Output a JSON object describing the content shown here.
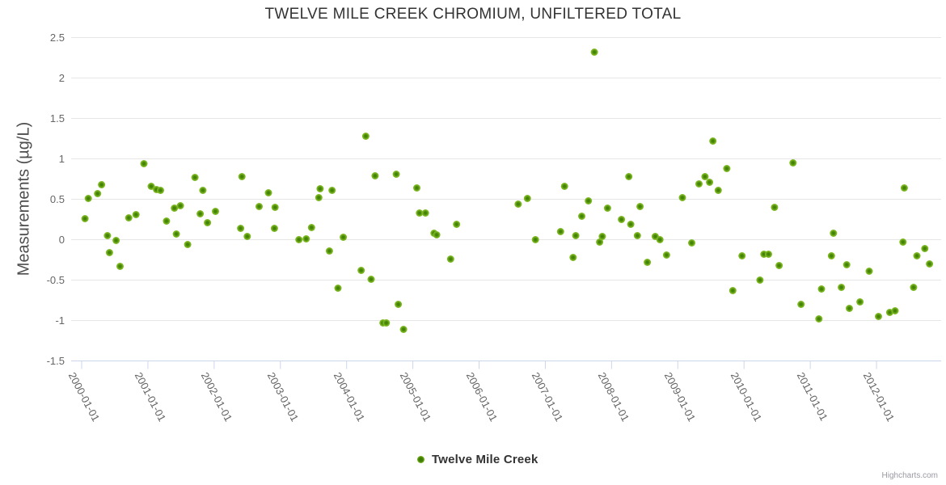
{
  "credit": "Highcharts.com",
  "chart_data": {
    "type": "scatter",
    "title": "TWELVE MILE CREEK CHROMIUM, UNFILTERED TOTAL",
    "ylabel": "Measurements (µg/L)",
    "xlabel": "",
    "ylim": [
      -1.5,
      2.5
    ],
    "yticks": [
      2.5,
      2,
      1.5,
      1,
      0.5,
      0,
      -0.5,
      -1,
      -1.5
    ],
    "xticks": [
      "2000-01-01",
      "2001-01-01",
      "2002-01-01",
      "2003-01-01",
      "2004-01-01",
      "2005-01-01",
      "2006-01-01",
      "2007-01-01",
      "2008-01-01",
      "2009-01-01",
      "2010-01-01",
      "2011-01-01",
      "2012-01-01"
    ],
    "grid": "horizontal-only",
    "legend_position": "bottom-center",
    "colors": {
      "grid": "#e6e6e6",
      "axis": "#ccd6eb",
      "marker_outer": "#77b41f",
      "marker_inner": "#3e7c04"
    },
    "series": [
      {
        "name": "Twelve Mile Creek",
        "points_year_value": [
          [
            2000.05,
            0.26
          ],
          [
            2000.1,
            0.51
          ],
          [
            2000.24,
            0.57
          ],
          [
            2000.3,
            0.68
          ],
          [
            2000.39,
            0.05
          ],
          [
            2000.42,
            -0.16
          ],
          [
            2000.52,
            -0.01
          ],
          [
            2000.58,
            -0.33
          ],
          [
            2000.71,
            0.27
          ],
          [
            2000.82,
            0.31
          ],
          [
            2000.94,
            0.94
          ],
          [
            2001.05,
            0.66
          ],
          [
            2001.13,
            0.62
          ],
          [
            2001.19,
            0.61
          ],
          [
            2001.28,
            0.23
          ],
          [
            2001.4,
            0.39
          ],
          [
            2001.43,
            0.07
          ],
          [
            2001.49,
            0.42
          ],
          [
            2001.6,
            -0.06
          ],
          [
            2001.71,
            0.77
          ],
          [
            2001.79,
            0.32
          ],
          [
            2001.83,
            0.61
          ],
          [
            2001.9,
            0.21
          ],
          [
            2002.02,
            0.35
          ],
          [
            2002.4,
            0.14
          ],
          [
            2002.42,
            0.78
          ],
          [
            2002.5,
            0.04
          ],
          [
            2002.68,
            0.41
          ],
          [
            2002.82,
            0.58
          ],
          [
            2002.91,
            0.14
          ],
          [
            2002.92,
            0.4
          ],
          [
            2003.28,
            0.0
          ],
          [
            2003.39,
            0.01
          ],
          [
            2003.47,
            0.15
          ],
          [
            2003.58,
            0.52
          ],
          [
            2003.6,
            0.63
          ],
          [
            2003.74,
            -0.14
          ],
          [
            2003.78,
            0.61
          ],
          [
            2003.87,
            -0.6
          ],
          [
            2003.95,
            0.03
          ],
          [
            2004.22,
            -0.38
          ],
          [
            2004.29,
            1.28
          ],
          [
            2004.37,
            -0.49
          ],
          [
            2004.43,
            0.79
          ],
          [
            2004.55,
            -1.03
          ],
          [
            2004.6,
            -1.03
          ],
          [
            2004.75,
            0.81
          ],
          [
            2004.78,
            -0.8
          ],
          [
            2004.86,
            -1.11
          ],
          [
            2005.06,
            0.64
          ],
          [
            2005.1,
            0.33
          ],
          [
            2005.19,
            0.33
          ],
          [
            2005.32,
            0.08
          ],
          [
            2005.36,
            0.06
          ],
          [
            2005.57,
            -0.24
          ],
          [
            2005.66,
            0.19
          ],
          [
            2006.59,
            0.44
          ],
          [
            2006.73,
            0.51
          ],
          [
            2006.85,
            0.0
          ],
          [
            2007.23,
            0.1
          ],
          [
            2007.29,
            0.66
          ],
          [
            2007.42,
            -0.22
          ],
          [
            2007.46,
            0.05
          ],
          [
            2007.55,
            0.29
          ],
          [
            2007.65,
            0.48
          ],
          [
            2007.74,
            2.32
          ],
          [
            2007.82,
            -0.03
          ],
          [
            2007.86,
            0.04
          ],
          [
            2007.94,
            0.39
          ],
          [
            2008.15,
            0.25
          ],
          [
            2008.26,
            0.78
          ],
          [
            2008.29,
            0.19
          ],
          [
            2008.39,
            0.05
          ],
          [
            2008.43,
            0.41
          ],
          [
            2008.54,
            -0.28
          ],
          [
            2008.66,
            0.04
          ],
          [
            2008.73,
            0.0
          ],
          [
            2008.83,
            -0.19
          ],
          [
            2009.07,
            0.52
          ],
          [
            2009.21,
            -0.04
          ],
          [
            2009.32,
            0.69
          ],
          [
            2009.41,
            0.78
          ],
          [
            2009.48,
            0.71
          ],
          [
            2009.53,
            1.22
          ],
          [
            2009.61,
            0.61
          ],
          [
            2009.74,
            0.88
          ],
          [
            2009.83,
            -0.63
          ],
          [
            2009.97,
            -0.2
          ],
          [
            2010.24,
            -0.5
          ],
          [
            2010.3,
            -0.18
          ],
          [
            2010.37,
            -0.18
          ],
          [
            2010.46,
            0.4
          ],
          [
            2010.53,
            -0.32
          ],
          [
            2010.74,
            0.95
          ],
          [
            2010.86,
            -0.8
          ],
          [
            2011.13,
            -0.98
          ],
          [
            2011.17,
            -0.61
          ],
          [
            2011.32,
            -0.2
          ],
          [
            2011.35,
            0.08
          ],
          [
            2011.47,
            -0.59
          ],
          [
            2011.55,
            -0.31
          ],
          [
            2011.59,
            -0.85
          ],
          [
            2011.75,
            -0.77
          ],
          [
            2011.89,
            -0.39
          ],
          [
            2012.03,
            -0.95
          ],
          [
            2012.2,
            -0.9
          ],
          [
            2012.28,
            -0.88
          ],
          [
            2012.4,
            -0.03
          ],
          [
            2012.42,
            0.64
          ],
          [
            2012.56,
            -0.59
          ],
          [
            2012.61,
            -0.2
          ],
          [
            2012.73,
            -0.11
          ],
          [
            2012.8,
            -0.3
          ]
        ]
      }
    ]
  }
}
